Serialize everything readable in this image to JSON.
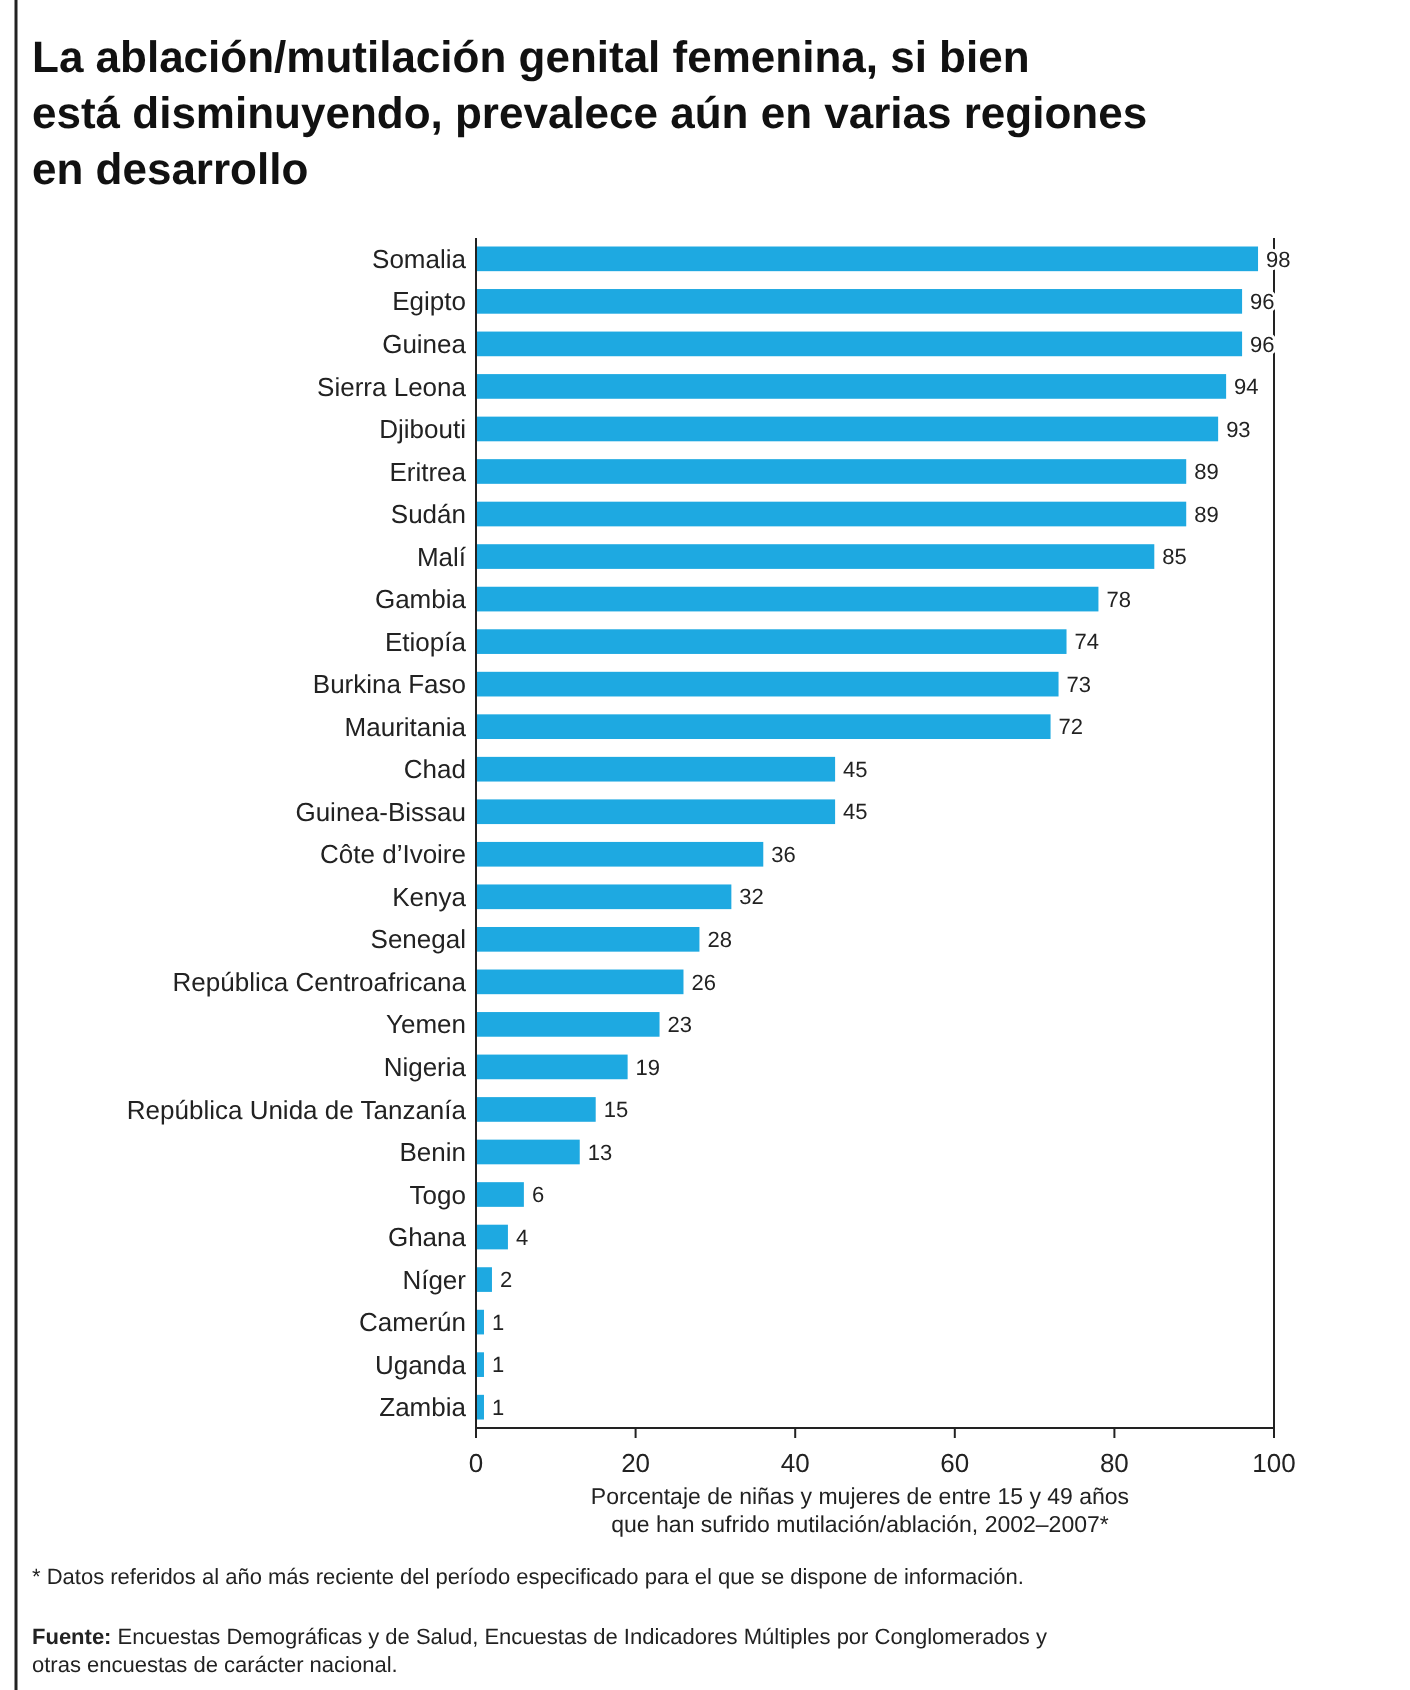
{
  "chart_data": {
    "type": "bar",
    "orientation": "horizontal",
    "title": "La ablación/mutilación genital femenina, si bien\nestá disminuyendo, prevalece aún en varias regiones\nen desarrollo",
    "xlabel": "Porcentaje de niñas y mujeres de entre 15 y 49 años\nque han sufrido mutilación/ablación, 2002–2007*",
    "categories": [
      "Somalia",
      "Egipto",
      "Guinea",
      "Sierra Leona",
      "Djibouti",
      "Eritrea",
      "Sudán",
      "Malí",
      "Gambia",
      "Etiopía",
      "Burkina Faso",
      "Mauritania",
      "Chad",
      "Guinea-Bissau",
      "Côte d’Ivoire",
      "Kenya",
      "Senegal",
      "República Centroafricana",
      "Yemen",
      "Nigeria",
      "República Unida de Tanzanía",
      "Benin",
      "Togo",
      "Ghana",
      "Níger",
      "Camerún",
      "Uganda",
      "Zambia"
    ],
    "values": [
      98,
      96,
      96,
      94,
      93,
      89,
      89,
      85,
      78,
      74,
      73,
      72,
      45,
      45,
      36,
      32,
      28,
      26,
      23,
      19,
      15,
      13,
      6,
      4,
      2,
      1,
      1,
      1
    ],
    "color": "#1ea9e1",
    "data_labels": true,
    "xlim": [
      0,
      100
    ],
    "xticks": [
      0,
      20,
      40,
      60,
      80,
      100
    ],
    "grid": false,
    "annotations": [
      "* Datos referidos al año más reciente del período especificado para el que se dispone de información.",
      "Fuente: Encuestas Demográficas y de Salud, Encuestas de Indicadores Múltiples por Conglomerados y\notras encuestas de carácter nacional."
    ]
  }
}
